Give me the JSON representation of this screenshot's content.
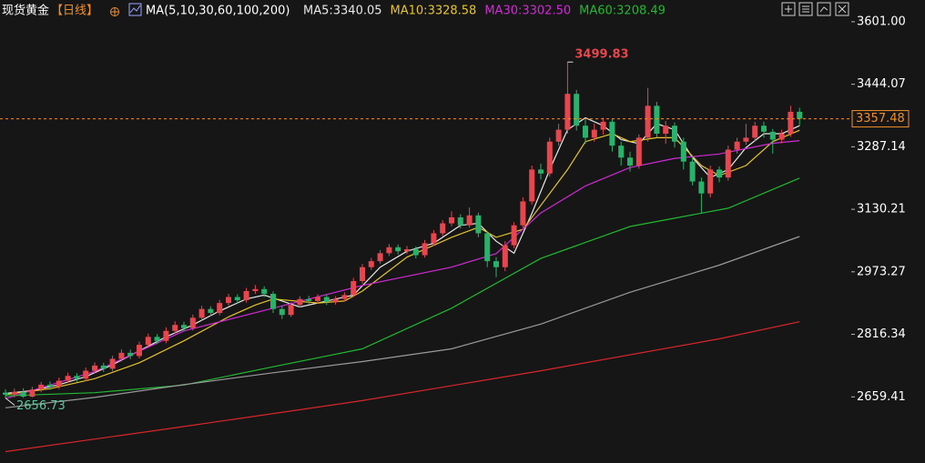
{
  "chart_data": {
    "type": "candlestick",
    "title": "现货黄金",
    "period": "【日线】",
    "ma_label": "MA(5,10,30,60,100,200)",
    "up_color": "#e8464f",
    "down_color": "#29b36a",
    "ylim": [
      2493.4,
      3655.6
    ],
    "yticks": [
      {
        "value": 3601,
        "label": "3601.00"
      },
      3444.07,
      3287.14,
      3130.21,
      2973.27,
      2816.34,
      2659.41
    ],
    "last_price": 3357.48,
    "last_price_color": "#f0902a",
    "open": [
      2670,
      2665,
      2672,
      2660,
      2678,
      2690,
      2685,
      2700,
      2712,
      2705,
      2725,
      2738,
      2730,
      2755,
      2770,
      2762,
      2790,
      2810,
      2800,
      2825,
      2840,
      2832,
      2858,
      2880,
      2870,
      2895,
      2910,
      2902,
      2925,
      2930,
      2918,
      2880,
      2865,
      2890,
      2905,
      2900,
      2910,
      2898,
      2905,
      2915,
      2950,
      2985,
      3000,
      3020,
      3035,
      3025,
      3030,
      3015,
      3045,
      3070,
      3095,
      3110,
      3090,
      3115,
      3070,
      3000,
      2985,
      3040,
      3090,
      3150,
      3230,
      3220,
      3300,
      3330,
      3420,
      3340,
      3310,
      3330,
      3350,
      3290,
      3260,
      3240,
      3310,
      3390,
      3320,
      3340,
      3300,
      3250,
      3200,
      3170,
      3230,
      3210,
      3280,
      3300,
      3310,
      3340,
      3325,
      3305,
      3320,
      3375
    ],
    "high": [
      2678,
      2680,
      2681,
      2685,
      2697,
      2698,
      2708,
      2720,
      2719,
      2733,
      2746,
      2745,
      2763,
      2779,
      2778,
      2798,
      2818,
      2817,
      2834,
      2849,
      2848,
      2866,
      2888,
      2887,
      2903,
      2918,
      2917,
      2933,
      2940,
      2937,
      2924,
      2888,
      2897,
      2912,
      2913,
      2917,
      2916,
      2912,
      2922,
      2958,
      2993,
      3008,
      3028,
      3043,
      3042,
      3038,
      3037,
      3053,
      3078,
      3103,
      3125,
      3118,
      3135,
      3122,
      3076,
      3010,
      3050,
      3098,
      3160,
      3240,
      3245,
      3310,
      3345,
      3499.83,
      3430,
      3355,
      3345,
      3360,
      3358,
      3300,
      3275,
      3318,
      3435,
      3400,
      3352,
      3348,
      3310,
      3262,
      3210,
      3240,
      3238,
      3290,
      3310,
      3345,
      3350,
      3350,
      3332,
      3330,
      3390,
      3385
    ],
    "low": [
      2656.73,
      2658,
      2657,
      2658,
      2671,
      2677,
      2679,
      2694,
      2697,
      2699,
      2718,
      2722,
      2724,
      2748,
      2754,
      2756,
      2783,
      2792,
      2794,
      2818,
      2824,
      2826,
      2851,
      2862,
      2864,
      2888,
      2894,
      2896,
      2918,
      2910,
      2870,
      2855,
      2860,
      2884,
      2892,
      2894,
      2890,
      2891,
      2899,
      2910,
      2944,
      2978,
      2994,
      3013,
      3017,
      3018,
      3007,
      3009,
      3038,
      3063,
      3088,
      3082,
      3084,
      3060,
      2985,
      2960,
      2975,
      3032,
      3084,
      3142,
      3205,
      3212,
      3290,
      3320,
      3328,
      3295,
      3300,
      3318,
      3275,
      3240,
      3225,
      3232,
      3300,
      3310,
      3295,
      3285,
      3230,
      3190,
      3120,
      3160,
      3198,
      3202,
      3270,
      3292,
      3300,
      3310,
      3270,
      3296,
      3312,
      3340
    ],
    "close": [
      2665,
      2672,
      2660,
      2678,
      2690,
      2685,
      2700,
      2712,
      2705,
      2725,
      2738,
      2730,
      2755,
      2770,
      2762,
      2790,
      2810,
      2800,
      2825,
      2840,
      2832,
      2858,
      2880,
      2870,
      2895,
      2910,
      2902,
      2925,
      2930,
      2918,
      2880,
      2865,
      2890,
      2905,
      2900,
      2910,
      2898,
      2905,
      2915,
      2950,
      2985,
      3000,
      3020,
      3035,
      3025,
      3030,
      3015,
      3045,
      3070,
      3095,
      3110,
      3090,
      3115,
      3070,
      3000,
      2985,
      3040,
      3090,
      3150,
      3230,
      3220,
      3300,
      3330,
      3420,
      3340,
      3310,
      3330,
      3350,
      3290,
      3260,
      3240,
      3310,
      3390,
      3320,
      3340,
      3300,
      3250,
      3200,
      3170,
      3230,
      3210,
      3280,
      3300,
      3310,
      3340,
      3325,
      3305,
      3320,
      3375,
      3357.48
    ],
    "series": [
      {
        "name": "MA5:3340.05",
        "color": "#e8e8e8",
        "x": [
          0,
          3,
          6,
          9,
          12,
          15,
          18,
          21,
          24,
          27,
          29,
          31,
          33,
          36,
          39,
          42,
          45,
          48,
          51,
          53,
          55,
          57,
          59,
          61,
          63,
          65,
          67,
          69,
          71,
          73,
          75,
          77,
          79,
          81,
          83,
          85,
          87,
          89
        ],
        "values": [
          2668,
          2675,
          2690,
          2710,
          2740,
          2775,
          2810,
          2840,
          2875,
          2905,
          2915,
          2900,
          2885,
          2900,
          2915,
          2985,
          3025,
          3045,
          3090,
          3095,
          3050,
          3020,
          3120,
          3230,
          3330,
          3360,
          3340,
          3305,
          3295,
          3345,
          3330,
          3260,
          3210,
          3230,
          3285,
          3320,
          3320,
          3340.05
        ]
      },
      {
        "name": "MA10:3328.58",
        "color": "#e6c42a",
        "x": [
          0,
          5,
          10,
          15,
          20,
          25,
          28,
          30,
          35,
          38,
          40,
          45,
          50,
          53,
          55,
          58,
          60,
          63,
          65,
          68,
          70,
          73,
          75,
          78,
          80,
          83,
          86,
          89
        ],
        "values": [
          2665,
          2680,
          2705,
          2745,
          2800,
          2860,
          2890,
          2905,
          2895,
          2900,
          2925,
          3010,
          3060,
          3085,
          3060,
          3080,
          3140,
          3230,
          3300,
          3320,
          3300,
          3310,
          3310,
          3240,
          3215,
          3240,
          3300,
          3328.58
        ]
      },
      {
        "name": "MA30:3302.50",
        "color": "#d12ad6",
        "x": [
          0,
          10,
          20,
          30,
          40,
          50,
          55,
          60,
          65,
          70,
          75,
          80,
          86,
          89
        ],
        "values": [
          2655,
          2723,
          2825,
          2882,
          2939,
          2985,
          3019,
          3121,
          3189,
          3235,
          3258,
          3269,
          3296,
          3302.5
        ]
      },
      {
        "name": "MA60:3208.49",
        "color": "#21b832",
        "x": [
          0,
          10,
          20,
          30,
          40,
          50,
          60,
          70,
          81,
          89
        ],
        "values": [
          2662,
          2670,
          2689,
          2735,
          2780,
          2882,
          3007,
          3087,
          3133,
          3208.49
        ]
      },
      {
        "color": "#9a9a9a",
        "x": [
          0,
          10,
          20,
          30,
          40,
          50,
          60,
          70,
          80,
          89
        ],
        "values": [
          2632,
          2658,
          2690,
          2720,
          2748,
          2780,
          2842,
          2922,
          2990,
          3062
        ]
      },
      {
        "color": "#d8262a",
        "x": [
          0,
          20,
          40,
          60,
          80,
          89
        ],
        "values": [
          2522,
          2585,
          2650,
          2725,
          2805,
          2848
        ]
      }
    ]
  }
}
